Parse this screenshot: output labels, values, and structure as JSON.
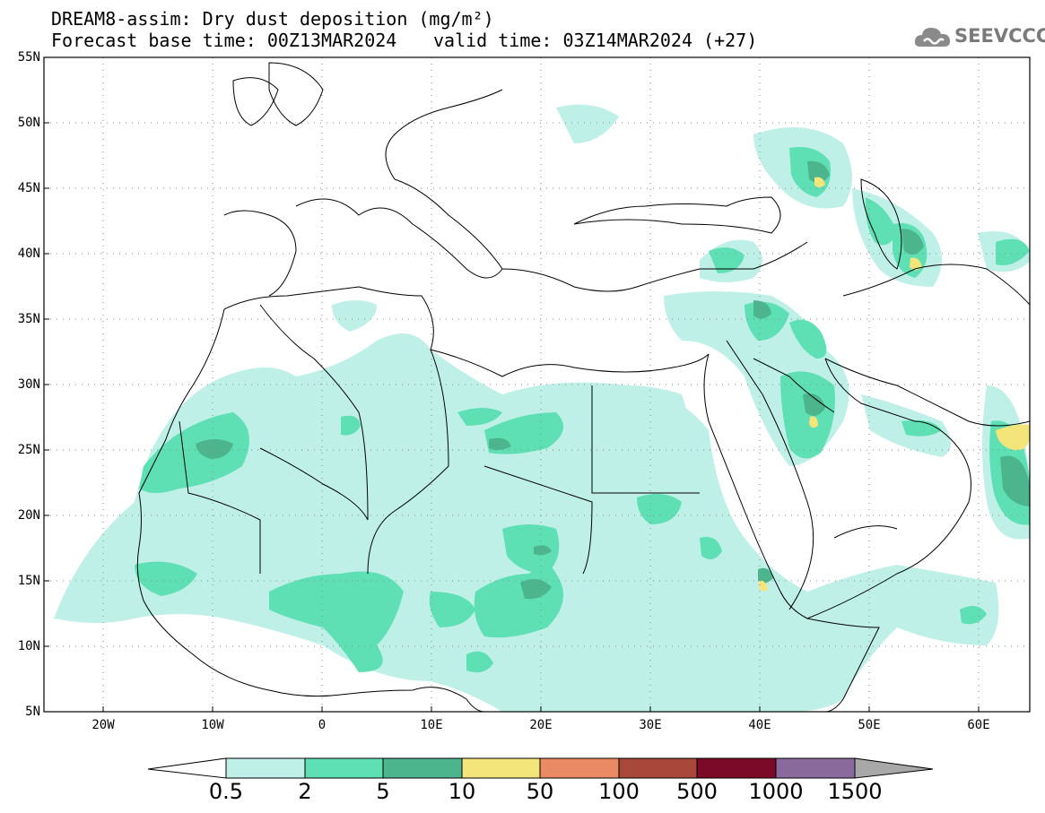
{
  "title": {
    "line1": "DREAM8-assim: Dry dust deposition (mg/m²)",
    "line2": "Forecast base time: 00Z13MAR2024",
    "valid": "valid time: 03Z14MAR2024 (+27)"
  },
  "logo": {
    "text": "SEEVCCC",
    "icon": "cloud-icon"
  },
  "axes": {
    "lat_labels": [
      "55N",
      "50N",
      "45N",
      "40N",
      "35N",
      "30N",
      "25N",
      "20N",
      "15N",
      "10N",
      "5N"
    ],
    "lon_labels": [
      "20W",
      "10W",
      "0",
      "10E",
      "20E",
      "30E",
      "40E",
      "50E",
      "60E"
    ]
  },
  "colorbar": {
    "labels": [
      "0.5",
      "2",
      "5",
      "10",
      "50",
      "100",
      "500",
      "1000",
      "1500"
    ],
    "colors": [
      "#bff0e8",
      "#5fe0b4",
      "#4cb58e",
      "#f4e57a",
      "#ea8a64",
      "#a8483b",
      "#7a0a28",
      "#8a6a9c",
      "#a8a8a8"
    ]
  },
  "colors": {
    "level1": "#bff0e8",
    "level2": "#5fe0b4",
    "level3": "#4cb58e",
    "level4": "#f4e57a",
    "coast": "#000000"
  }
}
